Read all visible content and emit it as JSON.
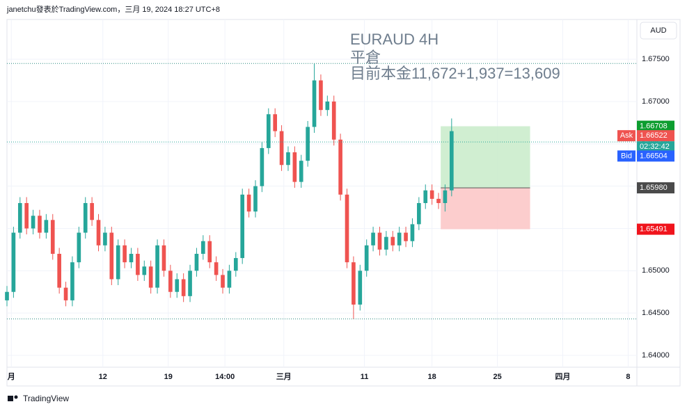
{
  "header": {
    "text": "janetchu發表於TradingView.com，三月 19, 2024 18:27 UTC+8",
    "currency": "AUD",
    "brand": "TradingView"
  },
  "chart_data": {
    "type": "candlestick",
    "title": "EURAUD 4H",
    "subtitle": "平倉",
    "annotation": "目前本金11,672+1,937=13,609",
    "up_color": "#26a69a",
    "down_color": "#ef5350",
    "x": [
      0,
      3,
      6,
      9,
      12,
      15,
      18,
      21,
      24,
      27,
      30,
      33,
      36,
      39,
      42,
      45,
      48,
      51,
      54,
      57,
      60,
      63,
      66,
      69,
      72,
      75,
      78,
      81,
      84,
      87,
      90,
      93,
      96,
      99,
      102,
      105,
      108,
      111,
      114,
      117,
      120,
      123,
      126,
      129,
      132,
      135,
      138,
      141,
      144,
      147,
      150,
      153,
      156,
      159,
      162,
      165,
      168,
      171,
      174,
      177,
      180,
      183,
      186,
      189,
      192,
      195,
      198,
      201,
      204
    ],
    "open": [
      1.6465,
      1.6475,
      1.6545,
      1.658,
      1.655,
      1.6565,
      1.6545,
      1.656,
      1.652,
      1.648,
      1.6465,
      1.651,
      1.6545,
      1.658,
      1.656,
      1.653,
      1.6545,
      1.649,
      1.653,
      1.651,
      1.652,
      1.6495,
      1.6505,
      1.648,
      1.653,
      1.65,
      1.6475,
      1.649,
      1.647,
      1.65,
      1.652,
      1.6535,
      1.651,
      1.6495,
      1.648,
      1.65,
      1.6515,
      1.659,
      1.657,
      1.66,
      1.6645,
      1.6685,
      1.6665,
      1.6625,
      1.664,
      1.6605,
      1.663,
      1.667,
      1.6725,
      1.669,
      1.67,
      1.6655,
      1.659,
      1.651,
      1.646,
      1.65,
      1.653,
      1.6545,
      1.6525,
      1.654,
      1.653,
      1.6545,
      1.6535,
      1.6555,
      1.658,
      1.6595,
      1.6585,
      1.658,
      1.6595
    ],
    "high": [
      1.6482,
      1.6552,
      1.6587,
      1.6587,
      1.6572,
      1.6572,
      1.6567,
      1.6567,
      1.6527,
      1.6487,
      1.6517,
      1.6552,
      1.6587,
      1.6587,
      1.6567,
      1.6552,
      1.6552,
      1.6537,
      1.6537,
      1.6527,
      1.6527,
      1.6512,
      1.6512,
      1.6537,
      1.6537,
      1.6507,
      1.6497,
      1.6497,
      1.6507,
      1.6527,
      1.6542,
      1.6542,
      1.6517,
      1.6502,
      1.6507,
      1.6522,
      1.6597,
      1.6597,
      1.6607,
      1.6652,
      1.6692,
      1.6692,
      1.6672,
      1.6647,
      1.6647,
      1.6637,
      1.6677,
      1.6745,
      1.6732,
      1.6707,
      1.6707,
      1.6662,
      1.6597,
      1.6517,
      1.6507,
      1.6537,
      1.6552,
      1.6552,
      1.6547,
      1.6547,
      1.6552,
      1.6552,
      1.6562,
      1.6587,
      1.6602,
      1.6602,
      1.6592,
      1.6602,
      1.668
    ],
    "low": [
      1.6458,
      1.6468,
      1.6538,
      1.6543,
      1.6543,
      1.6538,
      1.6538,
      1.6513,
      1.6473,
      1.6458,
      1.6458,
      1.6503,
      1.6538,
      1.6553,
      1.6523,
      1.6523,
      1.6483,
      1.6483,
      1.6503,
      1.6503,
      1.6488,
      1.6488,
      1.6473,
      1.6473,
      1.6493,
      1.6468,
      1.6468,
      1.6463,
      1.6463,
      1.6493,
      1.6513,
      1.6503,
      1.6488,
      1.6473,
      1.6473,
      1.6493,
      1.6508,
      1.6563,
      1.6563,
      1.6593,
      1.6638,
      1.6658,
      1.6618,
      1.6618,
      1.6598,
      1.6598,
      1.6623,
      1.6663,
      1.6683,
      1.6683,
      1.6648,
      1.6583,
      1.6503,
      1.6443,
      1.6453,
      1.6493,
      1.6523,
      1.6518,
      1.6518,
      1.6523,
      1.6523,
      1.6528,
      1.6528,
      1.6548,
      1.6573,
      1.6578,
      1.6573,
      1.657,
      1.6588
    ],
    "close": [
      1.6475,
      1.6545,
      1.658,
      1.655,
      1.6565,
      1.6545,
      1.656,
      1.652,
      1.648,
      1.6465,
      1.651,
      1.6545,
      1.658,
      1.656,
      1.653,
      1.6545,
      1.649,
      1.653,
      1.651,
      1.652,
      1.6495,
      1.6505,
      1.648,
      1.653,
      1.65,
      1.6475,
      1.649,
      1.647,
      1.65,
      1.652,
      1.6535,
      1.651,
      1.6495,
      1.648,
      1.65,
      1.6515,
      1.659,
      1.657,
      1.66,
      1.6645,
      1.6685,
      1.6665,
      1.6625,
      1.664,
      1.6605,
      1.663,
      1.667,
      1.6725,
      1.669,
      1.67,
      1.6655,
      1.659,
      1.651,
      1.646,
      1.65,
      1.653,
      1.6545,
      1.6525,
      1.654,
      1.653,
      1.6545,
      1.6535,
      1.6555,
      1.658,
      1.6595,
      1.6585,
      1.658,
      1.6595,
      1.6665
    ],
    "xlim": [
      0,
      289
    ],
    "xticks": [
      {
        "value": 2,
        "label": "月"
      },
      {
        "value": 44,
        "label": "12"
      },
      {
        "value": 74,
        "label": "19"
      },
      {
        "value": 100,
        "label": "14:00"
      },
      {
        "value": 127,
        "label": "三月"
      },
      {
        "value": 164,
        "label": "11"
      },
      {
        "value": 195,
        "label": "18"
      },
      {
        "value": 225,
        "label": "25"
      },
      {
        "value": 255,
        "label": "四月"
      },
      {
        "value": 285,
        "label": "8"
      }
    ],
    "ylim": [
      1.6386,
      1.6797
    ],
    "yticks": [
      {
        "value": 1.64,
        "label": "1.64000"
      },
      {
        "value": 1.645,
        "label": "1.64500"
      },
      {
        "value": 1.65,
        "label": "1.65000"
      },
      {
        "value": 1.655,
        "label": "1.65500"
      },
      {
        "value": 1.66,
        "label": "1.66000"
      },
      {
        "value": 1.665,
        "label": "1.66500"
      },
      {
        "value": 1.67,
        "label": "1.67000"
      },
      {
        "value": 1.675,
        "label": "1.67500"
      }
    ],
    "grid": true,
    "position": {
      "x_start": 199,
      "x_end": 240,
      "target": 1.66708,
      "entry": {
        "value": 1.6598,
        "label": "1.65980"
      },
      "stop": 1.65491,
      "profit_color": "#c8ebc9",
      "loss_color": "#fcc4c4"
    },
    "ask": {
      "label": "Ask",
      "value": 1.66522,
      "countdown": "02:32:42"
    },
    "bid": {
      "label": "Bid",
      "value": 1.66504
    }
  }
}
